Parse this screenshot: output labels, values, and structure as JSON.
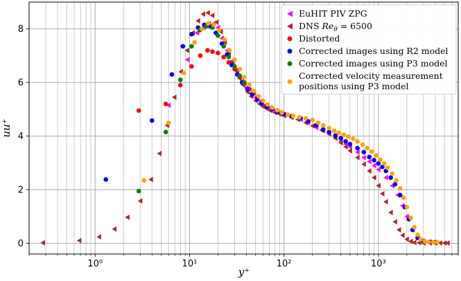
{
  "chart_data": {
    "type": "scatter",
    "xlabel": "y⁺",
    "ylabel": "uu⁺",
    "xscale": "log",
    "xlim": [
      0.2,
      7000
    ],
    "ylim": [
      -0.4,
      9.0
    ],
    "grid": true,
    "legend_position": "top-right",
    "x_ticks": [
      {
        "value": 1,
        "label": "10⁰"
      },
      {
        "value": 10,
        "label": "10¹"
      },
      {
        "value": 100,
        "label": "10²"
      },
      {
        "value": 1000,
        "label": "10³"
      }
    ],
    "y_ticks": [
      {
        "value": 0,
        "label": "0"
      },
      {
        "value": 2,
        "label": "2"
      },
      {
        "value": 4,
        "label": "4"
      },
      {
        "value": 6,
        "label": "6"
      },
      {
        "value": 8,
        "label": "8"
      }
    ],
    "series": [
      {
        "name": "EuHIT PIV ZPG",
        "color": "#ff00ff",
        "marker": "triangle-left",
        "x": [
          6,
          9.5,
          12,
          14,
          16,
          18,
          20,
          22,
          25,
          28,
          32,
          36,
          40,
          45,
          50,
          56,
          63,
          70,
          80,
          90,
          100,
          120,
          150,
          180,
          220,
          260,
          300,
          350,
          400,
          450,
          500,
          600,
          700,
          800,
          900,
          1000,
          1200,
          1400,
          1600,
          1800,
          2000,
          2300,
          2600,
          3000,
          3500,
          4000
        ],
        "y": [
          5.15,
          6.85,
          7.85,
          8.05,
          8.2,
          8.2,
          8.05,
          7.65,
          7.2,
          6.8,
          6.4,
          6.05,
          5.8,
          5.6,
          5.45,
          5.3,
          5.15,
          5.05,
          4.95,
          4.88,
          4.8,
          4.72,
          4.62,
          4.5,
          4.32,
          4.2,
          4.08,
          3.95,
          3.8,
          3.7,
          3.6,
          3.4,
          3.2,
          3.05,
          2.9,
          2.75,
          2.45,
          2.15,
          1.8,
          1.4,
          1.0,
          0.5,
          0.2,
          0.08,
          0.05,
          0.04
        ]
      },
      {
        "name": "DNS Reθ = 6500",
        "color": "#a52a2a",
        "marker": "triangle-left",
        "x": [
          0.28,
          0.68,
          1.1,
          1.6,
          2.2,
          3.0,
          3.9,
          4.8,
          5.8,
          6.9,
          8.1,
          9.4,
          10.8,
          12.3,
          13.9,
          15.6,
          17.4,
          19.3,
          21.4,
          23.6,
          26,
          28.5,
          31,
          34,
          37,
          41,
          45,
          50,
          55,
          60,
          66,
          72,
          80,
          90,
          100,
          120,
          140,
          170,
          200,
          250,
          300,
          350,
          400,
          450,
          500,
          600,
          700,
          800,
          900,
          1000,
          1100,
          1200,
          1350,
          1500,
          1650,
          1800,
          2000,
          2200,
          2400,
          2700,
          3000,
          3500,
          4000,
          4500,
          5000,
          5400
        ],
        "y": [
          0.02,
          0.1,
          0.24,
          0.53,
          0.97,
          1.58,
          2.38,
          3.35,
          4.4,
          5.45,
          6.4,
          7.2,
          7.85,
          8.3,
          8.55,
          8.6,
          8.5,
          8.25,
          7.9,
          7.5,
          7.1,
          6.75,
          6.45,
          6.15,
          5.9,
          5.65,
          5.48,
          5.32,
          5.2,
          5.1,
          5.02,
          4.95,
          4.88,
          4.82,
          4.76,
          4.7,
          4.62,
          4.5,
          4.38,
          4.22,
          4.08,
          3.92,
          3.75,
          3.6,
          3.45,
          3.2,
          2.95,
          2.7,
          2.45,
          2.15,
          1.85,
          1.55,
          1.15,
          0.8,
          0.5,
          0.3,
          0.15,
          0.07,
          0.03,
          0.02,
          0.01,
          0.01,
          0.01,
          0.01,
          0.01,
          0.01
        ]
      },
      {
        "name": "Distorted",
        "color": "#ff0000",
        "marker": "circle",
        "x": [
          2.9,
          5.6,
          8.0,
          10.5,
          13,
          15.5,
          17.5,
          20,
          23,
          26,
          30,
          34,
          38,
          43,
          48
        ],
        "y": [
          4.95,
          5.2,
          5.9,
          6.6,
          7.0,
          7.2,
          7.15,
          7.1,
          6.95,
          6.75,
          6.5,
          6.2,
          5.95,
          5.75,
          5.6
        ]
      },
      {
        "name": "Corrected images using R2 model",
        "color": "#0000ff",
        "marker": "circle",
        "x": [
          1.3,
          4.0,
          6.5,
          8.5,
          10.5,
          12.3,
          14.3,
          16.5,
          19,
          22,
          25,
          28,
          32,
          36,
          41,
          46,
          52,
          58,
          66,
          75,
          85,
          100,
          120,
          150,
          180,
          220,
          260,
          300,
          350,
          400,
          450,
          500,
          600,
          700,
          800,
          900,
          1000,
          1100,
          1200,
          1350,
          1500,
          1700,
          1900,
          2100,
          2300,
          2600,
          3000,
          3500,
          4000
        ],
        "y": [
          2.38,
          4.58,
          6.3,
          7.35,
          7.8,
          8.05,
          8.15,
          8.1,
          7.85,
          7.45,
          7.05,
          6.65,
          6.3,
          6.0,
          5.75,
          5.55,
          5.38,
          5.22,
          5.1,
          5.0,
          4.9,
          4.82,
          4.74,
          4.66,
          4.55,
          4.4,
          4.25,
          4.15,
          4.02,
          3.92,
          3.8,
          3.7,
          3.55,
          3.4,
          3.22,
          3.1,
          2.98,
          2.85,
          2.7,
          2.45,
          2.2,
          1.8,
          1.35,
          0.9,
          0.5,
          0.2,
          0.08,
          0.05,
          0.04
        ]
      },
      {
        "name": "Corrected images using P3 model",
        "color": "#008000",
        "marker": "circle",
        "x": [
          2.9,
          5.6,
          8.0,
          10.5,
          12.8,
          15,
          17.5,
          20,
          23,
          26,
          30,
          34,
          38
        ],
        "y": [
          1.95,
          4.15,
          6.1,
          7.35,
          7.95,
          8.1,
          8.05,
          7.75,
          7.35,
          6.95,
          6.6,
          6.25,
          6.0
        ]
      },
      {
        "name": "Corrected velocity measurement positions using P3 model",
        "color": "#ffa500",
        "marker": "circle",
        "x": [
          3.3,
          6.0,
          8.7,
          11.3,
          13.5,
          15.8,
          18,
          20.5,
          23.5,
          26.5,
          30,
          34,
          38,
          43,
          48,
          54,
          60,
          67,
          75,
          85,
          95,
          110,
          125,
          145,
          170,
          200,
          230,
          260,
          300,
          340,
          380,
          430,
          480,
          540,
          600,
          680,
          760,
          850,
          950,
          1050,
          1150,
          1250,
          1400,
          1550,
          1700,
          1850,
          2000,
          2200,
          2400,
          2600,
          2800,
          3100,
          3400,
          3800,
          4200
        ],
        "y": [
          2.35,
          4.5,
          6.35,
          7.5,
          8.0,
          8.2,
          8.15,
          7.95,
          7.6,
          7.2,
          6.85,
          6.5,
          6.2,
          5.92,
          5.68,
          5.48,
          5.32,
          5.18,
          5.06,
          4.96,
          4.88,
          4.8,
          4.75,
          4.7,
          4.66,
          4.6,
          4.5,
          4.4,
          4.3,
          4.2,
          4.12,
          4.05,
          3.98,
          3.9,
          3.8,
          3.68,
          3.55,
          3.42,
          3.28,
          3.12,
          2.98,
          2.82,
          2.6,
          2.35,
          2.05,
          1.7,
          1.35,
          0.95,
          0.6,
          0.32,
          0.15,
          0.07,
          0.05,
          0.04,
          0.04
        ]
      }
    ]
  },
  "legend": {
    "items": [
      {
        "label": "EuHIT PIV ZPG",
        "color": "#ff00ff",
        "marker": "triangle-left"
      },
      {
        "label_prefix": "DNS ",
        "label_math": "Re",
        "label_sub": "θ",
        "label_suffix": " = 6500",
        "color": "#a52a2a",
        "marker": "triangle-left"
      },
      {
        "label": "Distorted",
        "color": "#ff0000",
        "marker": "circle"
      },
      {
        "label": "Corrected images using R2 model",
        "color": "#0000ff",
        "marker": "circle"
      },
      {
        "label": "Corrected images using P3 model",
        "color": "#008000",
        "marker": "circle"
      },
      {
        "label_line1": "Corrected velocity measurement",
        "label_line2": " positions using P3 model",
        "color": "#ffa500",
        "marker": "circle"
      }
    ]
  }
}
